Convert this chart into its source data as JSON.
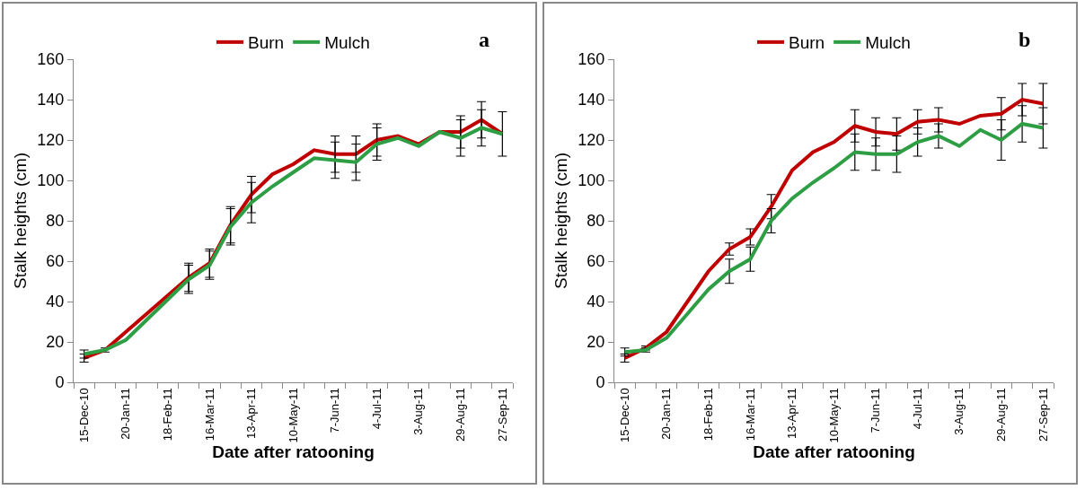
{
  "chart_data": [
    {
      "type": "line",
      "title": "a",
      "xlabel": "Date after ratooning",
      "ylabel": "Stalk heights (cm)",
      "categories": [
        "15-Dec-10",
        null,
        "20-Jan-11",
        null,
        "18-Feb-11",
        null,
        "16-Mar-11",
        null,
        "13-Apr-11",
        null,
        "10-May-11",
        null,
        "7-Jun-11",
        null,
        "4-Jul-11",
        null,
        "3-Aug-11",
        null,
        "29-Aug-11",
        null,
        "27-Sep-11"
      ],
      "series": [
        {
          "name": "Burn",
          "color": "#c00000",
          "values": [
            12,
            16,
            25,
            34,
            43,
            52,
            59,
            78,
            93,
            103,
            108,
            115,
            113,
            113,
            120,
            122,
            118,
            124,
            124,
            130,
            123
          ],
          "errors": [
            2,
            1,
            null,
            null,
            null,
            7,
            7,
            9,
            9,
            null,
            null,
            null,
            9,
            9,
            8,
            null,
            null,
            null,
            8,
            9,
            null
          ]
        },
        {
          "name": "Mulch",
          "color": "#2e9e44",
          "values": [
            14,
            16,
            21,
            31,
            41,
            51,
            58,
            77,
            89,
            97,
            104,
            111,
            110,
            109,
            118,
            121,
            117,
            124,
            121,
            126,
            123
          ],
          "errors": [
            2,
            null,
            null,
            null,
            null,
            7,
            7,
            9,
            10,
            null,
            null,
            null,
            9,
            9,
            8,
            null,
            null,
            null,
            9,
            9,
            11
          ]
        }
      ],
      "ylim": [
        0,
        160
      ],
      "yticks": [
        0,
        20,
        40,
        60,
        80,
        100,
        120,
        140,
        160
      ],
      "grid": false,
      "legend": "top",
      "marker": "none",
      "line_style": "solid"
    },
    {
      "type": "line",
      "title": "b",
      "xlabel": "Date after ratooning",
      "ylabel": "Stalk heights (cm)",
      "categories": [
        "15-Dec-10",
        null,
        "20-Jan-11",
        null,
        "18-Feb-11",
        null,
        "16-Mar-11",
        null,
        "13-Apr-11",
        null,
        "10-May-11",
        null,
        "7-Jun-11",
        null,
        "4-Jul-11",
        null,
        "3-Aug-11",
        null,
        "29-Aug-11",
        null,
        "27-Sep-11"
      ],
      "series": [
        {
          "name": "Burn",
          "color": "#c00000",
          "values": [
            12,
            17,
            25,
            40,
            55,
            66,
            72,
            87,
            105,
            114,
            119,
            127,
            124,
            123,
            129,
            130,
            128,
            132,
            133,
            140,
            138
          ],
          "errors": [
            2,
            1,
            null,
            null,
            null,
            3,
            4,
            6,
            null,
            null,
            null,
            8,
            7,
            8,
            6,
            6,
            null,
            null,
            8,
            8,
            10
          ]
        },
        {
          "name": "Mulch",
          "color": "#2e9e44",
          "values": [
            15,
            16,
            22,
            34,
            46,
            55,
            61,
            80,
            91,
            99,
            106,
            114,
            113,
            113,
            119,
            122,
            117,
            125,
            120,
            128,
            126
          ],
          "errors": [
            2,
            1,
            null,
            null,
            null,
            6,
            6,
            6,
            null,
            null,
            null,
            9,
            8,
            9,
            7,
            6,
            null,
            null,
            10,
            9,
            10
          ]
        }
      ],
      "ylim": [
        0,
        160
      ],
      "yticks": [
        0,
        20,
        40,
        60,
        80,
        100,
        120,
        140,
        160
      ],
      "grid": false,
      "legend": "top",
      "marker": "none",
      "line_style": "solid"
    }
  ]
}
